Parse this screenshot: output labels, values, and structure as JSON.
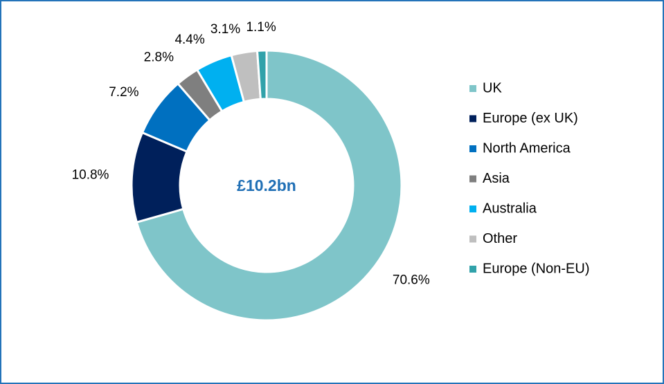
{
  "chart_data": {
    "type": "donut",
    "center_label": "£10.2bn",
    "categories": [
      "UK",
      "Europe (ex UK)",
      "North America",
      "Asia",
      "Australia",
      "Other",
      "Europe (Non-EU)"
    ],
    "values": [
      70.6,
      10.8,
      7.2,
      2.8,
      4.4,
      3.1,
      1.1
    ],
    "value_labels": [
      "70.6%",
      "10.8%",
      "7.2%",
      "2.8%",
      "4.4%",
      "3.1%",
      "1.1%"
    ],
    "colors": [
      "#7fc5c9",
      "#00205b",
      "#0070c0",
      "#7f7f7f",
      "#00b0f0",
      "#bfbfbf",
      "#31a2aa"
    ],
    "legend": "right"
  }
}
